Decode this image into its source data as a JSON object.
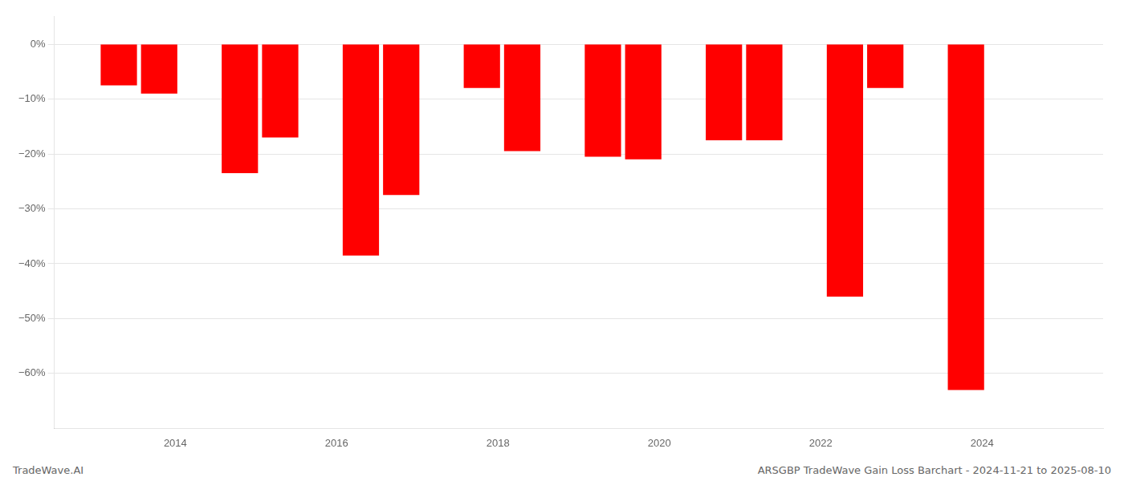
{
  "chart_data": {
    "type": "bar",
    "x": [
      2013.3,
      2013.8,
      2014.8,
      2015.3,
      2016.3,
      2016.8,
      2017.8,
      2018.3,
      2019.3,
      2019.8,
      2020.8,
      2021.3,
      2022.3,
      2022.8,
      2023.8
    ],
    "values": [
      -7.5,
      -9.0,
      -23.5,
      -17.0,
      -38.5,
      -27.5,
      -8.0,
      -19.5,
      -20.5,
      -21.0,
      -17.5,
      -17.5,
      -46.0,
      -8.0,
      -63.0
    ],
    "color": "#ff0000",
    "xlim": [
      2012.5,
      2025.5
    ],
    "xticks": [
      2014,
      2016,
      2018,
      2020,
      2022,
      2024
    ],
    "ylim": [
      -70,
      5
    ],
    "yticks": [
      {
        "value": 0,
        "label": "0%"
      },
      {
        "value": -10,
        "label": "−10%"
      },
      {
        "value": -20,
        "label": "−20%"
      },
      {
        "value": -30,
        "label": "−30%"
      },
      {
        "value": -40,
        "label": "−40%"
      },
      {
        "value": -50,
        "label": "−50%"
      },
      {
        "value": -60,
        "label": "−60%"
      }
    ],
    "grid": true,
    "annotations": [
      "TradeWave.AI",
      "ARSGBP TradeWave Gain Loss Barchart - 2024-11-21 to 2025-08-10"
    ]
  }
}
